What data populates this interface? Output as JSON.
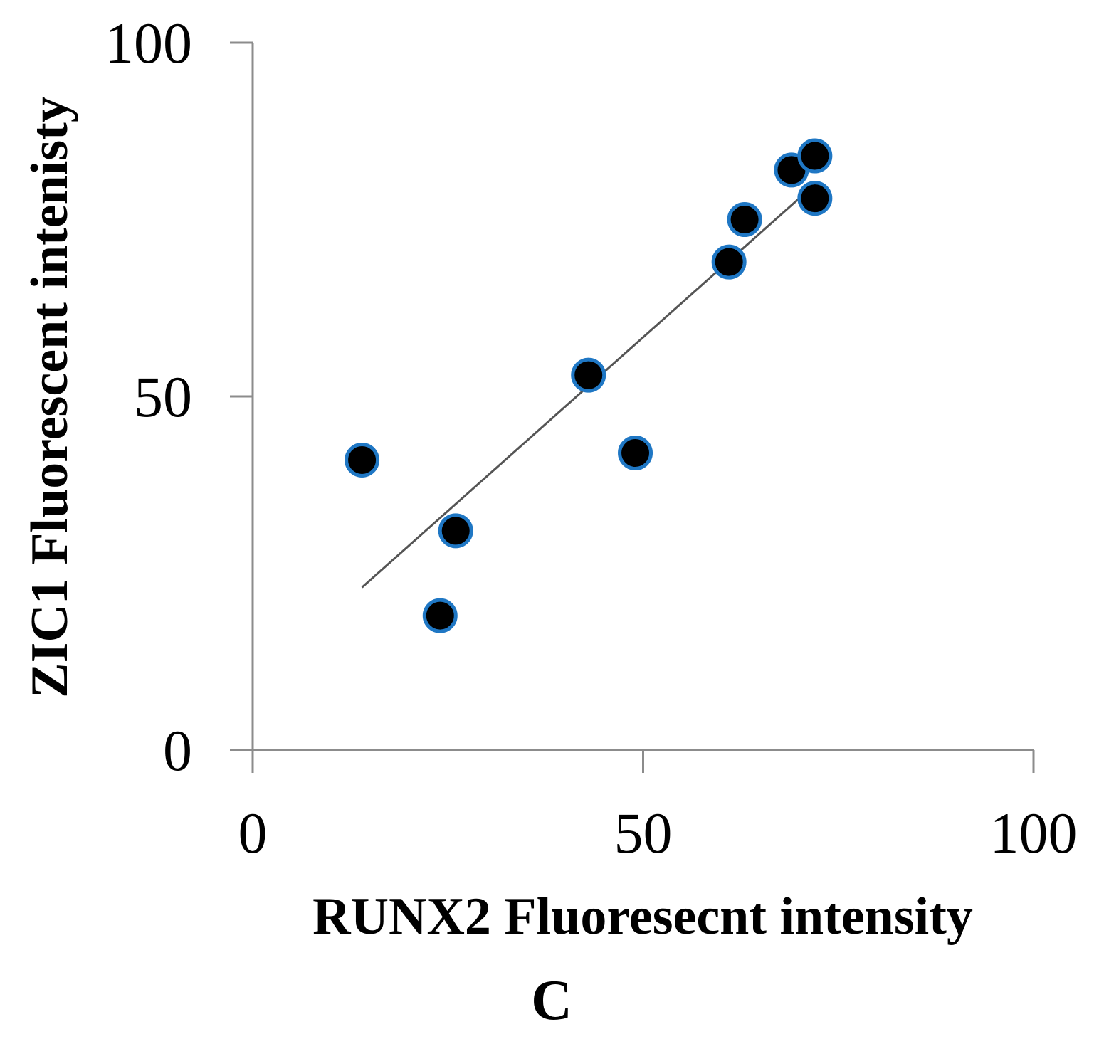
{
  "chart_data": {
    "type": "scatter",
    "title": "",
    "xlabel": "RUNX2 Fluoresecnt intensity",
    "ylabel": "ZIC1  Fluorescent intenisty",
    "panel_label": "C",
    "xlim": [
      0,
      100
    ],
    "ylim": [
      0,
      100
    ],
    "xticks": [
      "0",
      "50",
      "100"
    ],
    "yticks": [
      "0",
      "50",
      "100"
    ],
    "grid": false,
    "legend": "none",
    "marker_color": "#000000",
    "marker_edge_color": "#1f77c4",
    "trendline_color": "#555555",
    "series": [
      {
        "x": [
          14,
          24,
          26,
          43,
          49,
          61,
          63,
          69,
          72,
          72
        ],
        "y": [
          41,
          19,
          31,
          53,
          42,
          69,
          75,
          82,
          84,
          78
        ]
      }
    ],
    "trendline": {
      "x": [
        14,
        70
      ],
      "y": [
        23,
        78
      ]
    }
  }
}
